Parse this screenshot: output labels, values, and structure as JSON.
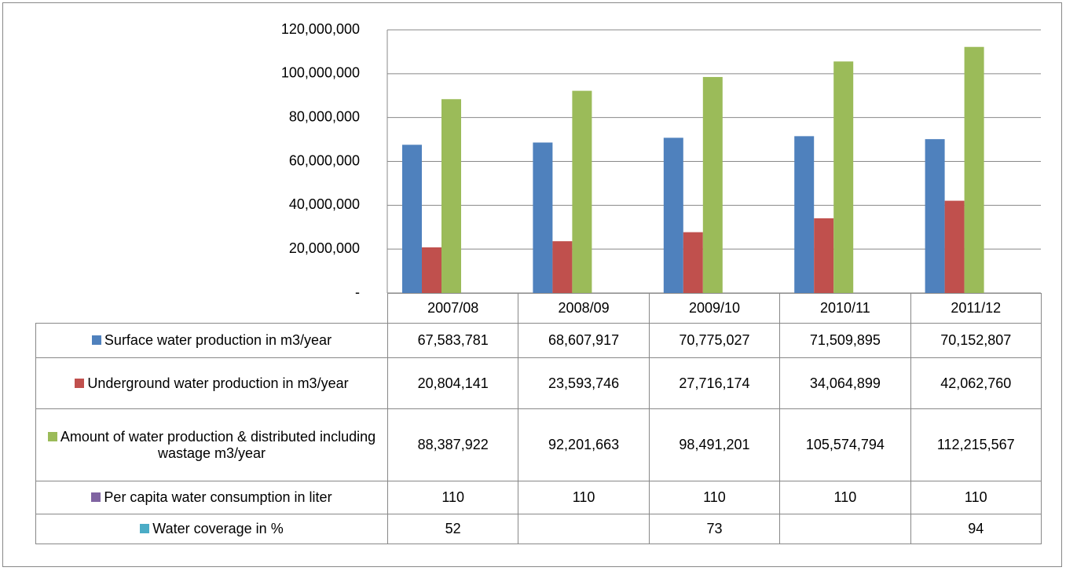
{
  "chart_data": {
    "type": "bar",
    "categories": [
      "2007/08",
      "2008/09",
      "2009/10",
      "2010/11",
      "2011/12"
    ],
    "series": [
      {
        "name": "Surface water production in m3/year",
        "color": "#4f81bd",
        "values": [
          67583781,
          68607917,
          70775027,
          71509895,
          70152807
        ],
        "value_labels": [
          "67,583,781",
          "68,607,917",
          "70,775,027",
          "71,509,895",
          "70,152,807"
        ]
      },
      {
        "name": "Underground water production in m3/year",
        "color": "#c0504d",
        "values": [
          20804141,
          23593746,
          27716174,
          34064899,
          42062760
        ],
        "value_labels": [
          "20,804,141",
          "23,593,746",
          "27,716,174",
          "34,064,899",
          "42,062,760"
        ]
      },
      {
        "name": "Amount of water production & distributed including wastage m3/year",
        "color": "#9bbb59",
        "values": [
          88387922,
          92201663,
          98491201,
          105574794,
          112215567
        ],
        "value_labels": [
          "88,387,922",
          "92,201,663",
          "98,491,201",
          "105,574,794",
          "112,215,567"
        ]
      },
      {
        "name": "Per capita water consumption in liter",
        "color": "#8064a2",
        "values": [
          110,
          110,
          110,
          110,
          110
        ]
      },
      {
        "name": "Water coverage in %",
        "color": "#4bacc6",
        "values": [
          52,
          null,
          73,
          null,
          94
        ]
      }
    ],
    "ylim": [
      0,
      120000000
    ],
    "yticks": [
      {
        "value": 0,
        "label": "-"
      },
      {
        "value": 20000000,
        "label": "20,000,000"
      },
      {
        "value": 40000000,
        "label": "40,000,000"
      },
      {
        "value": 60000000,
        "label": "60,000,000"
      },
      {
        "value": 80000000,
        "label": "80,000,000"
      },
      {
        "value": 100000000,
        "label": "100,000,000"
      },
      {
        "value": 120000000,
        "label": "120,000,000"
      }
    ],
    "grid": true
  }
}
